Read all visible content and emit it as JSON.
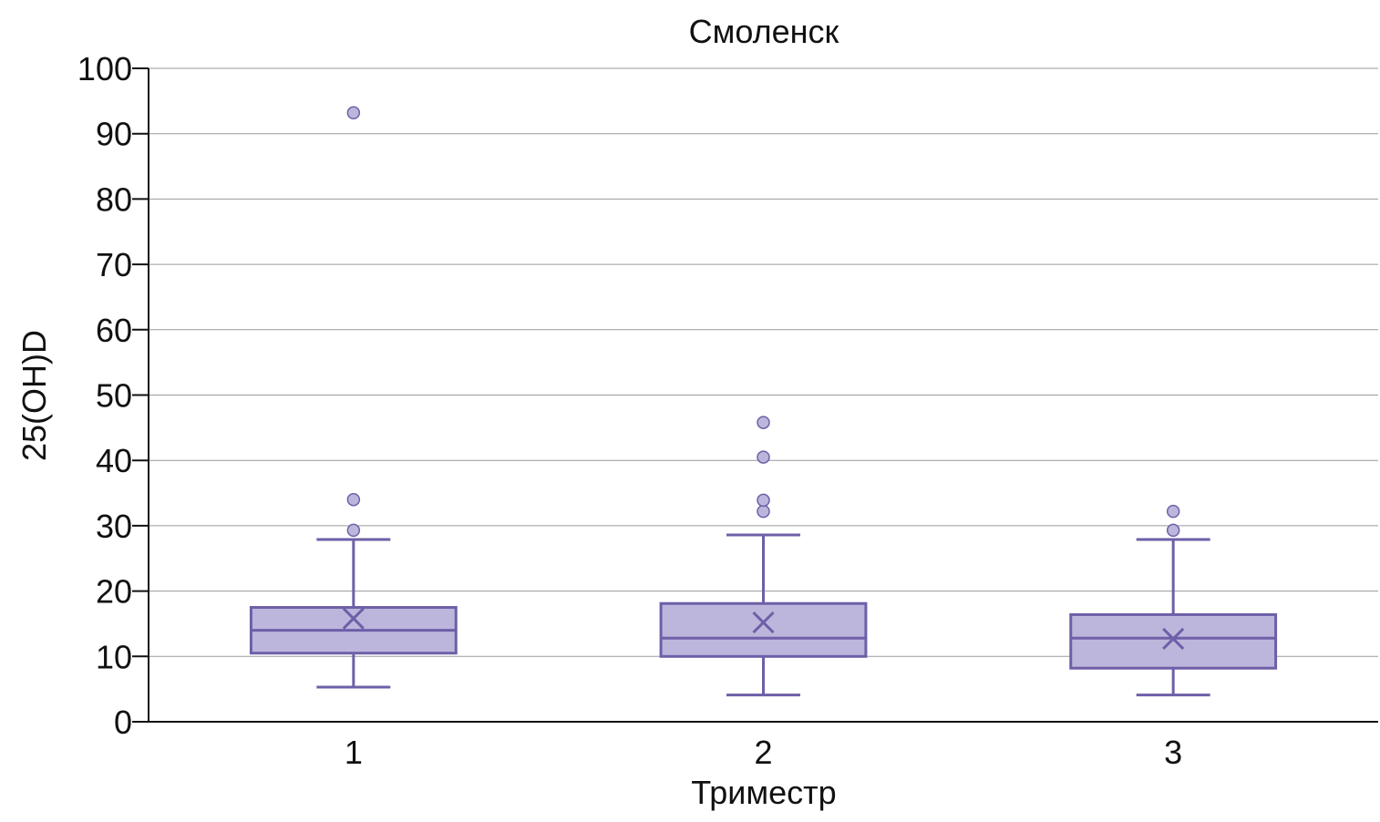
{
  "chart_data": {
    "type": "box",
    "title": "Смоленск",
    "xlabel": "Триместр",
    "ylabel": "25(OH)D",
    "ylim": [
      0,
      100
    ],
    "yticks": [
      0,
      10,
      20,
      30,
      40,
      50,
      60,
      70,
      80,
      90,
      100
    ],
    "grid": true,
    "categories": [
      "1",
      "2",
      "3"
    ],
    "boxes": [
      {
        "category": "1",
        "whisker_low": 5.3,
        "q1": 10.5,
        "median": 14.0,
        "q3": 17.5,
        "whisker_high": 27.9,
        "mean": 15.8,
        "outliers": [
          29.3,
          34.0,
          93.2
        ]
      },
      {
        "category": "2",
        "whisker_low": 4.1,
        "q1": 10.0,
        "median": 12.8,
        "q3": 18.1,
        "whisker_high": 28.6,
        "mean": 15.2,
        "outliers": [
          32.2,
          33.9,
          40.5,
          45.8
        ]
      },
      {
        "category": "3",
        "whisker_low": 4.1,
        "q1": 8.2,
        "median": 12.8,
        "q3": 16.4,
        "whisker_high": 27.9,
        "mean": 12.7,
        "outliers": [
          29.3,
          32.2
        ]
      }
    ],
    "colors": {
      "box_fill": "#bdb6dc",
      "box_stroke": "#6e5fa8",
      "grid": "#9a9a9a",
      "axis": "#111111",
      "outlier_fill": "#bdb6dc"
    }
  }
}
